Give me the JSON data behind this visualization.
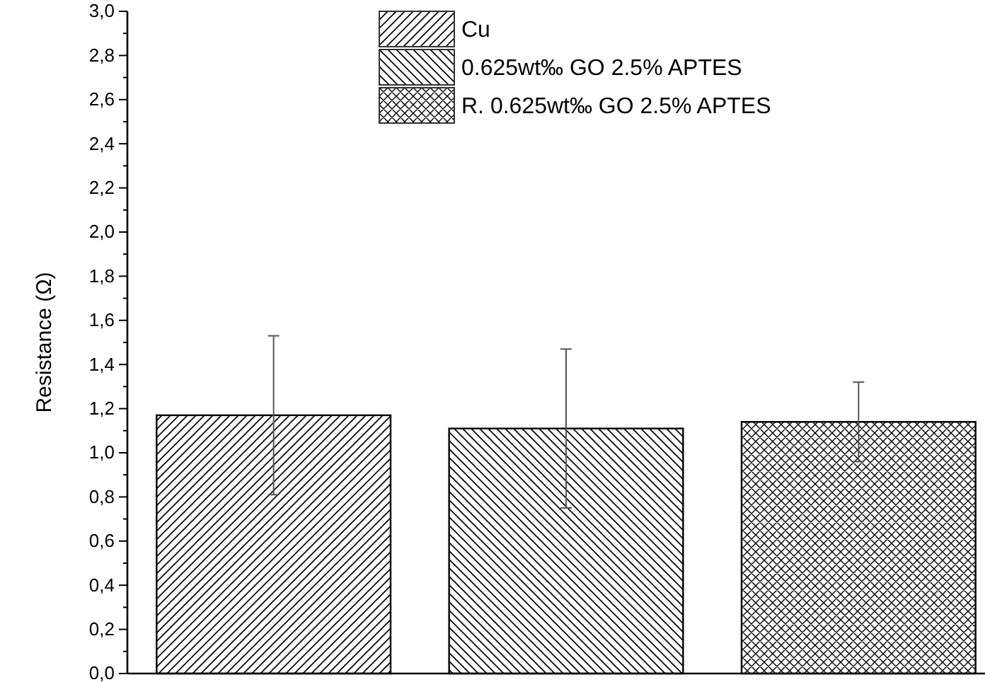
{
  "chart_data": {
    "type": "bar",
    "ylabel": "Resistance (Ω)",
    "categories": [
      null,
      null,
      null
    ],
    "series": [
      {
        "name": "Cu",
        "color": "#000000",
        "values": [
          1.17,
          null,
          null
        ],
        "errors": [
          0.36,
          null,
          null
        ]
      },
      {
        "name": "0.625wt‰ GO 2.5% APTES",
        "color": "#000000",
        "values": [
          null,
          1.11,
          null
        ],
        "errors": [
          null,
          0.36,
          null
        ]
      },
      {
        "name": "R. 0.625wt‰ GO 2.5% APTES",
        "color": "#000000",
        "values": [
          null,
          null,
          1.14
        ],
        "errors": [
          null,
          null,
          0.18
        ]
      }
    ],
    "ylim": [
      0,
      3
    ],
    "yticks": [
      {
        "value": 0,
        "label": "0,0"
      },
      {
        "value": 0.2,
        "label": "0,2"
      },
      {
        "value": 0.4,
        "label": "0,4"
      },
      {
        "value": 0.6,
        "label": "0,6"
      },
      {
        "value": 0.8,
        "label": "0,8"
      },
      {
        "value": 1,
        "label": "1,0"
      },
      {
        "value": 1.2,
        "label": "1,2"
      },
      {
        "value": 1.4,
        "label": "1,4"
      },
      {
        "value": 1.6,
        "label": "1,6"
      },
      {
        "value": 1.8,
        "label": "1,8"
      },
      {
        "value": 2,
        "label": "2,0"
      },
      {
        "value": 2.2,
        "label": "2,2"
      },
      {
        "value": 2.4,
        "label": "2,4"
      },
      {
        "value": 2.6,
        "label": "2,6"
      },
      {
        "value": 2.8,
        "label": "2,8"
      },
      {
        "value": 3,
        "label": "3,0"
      }
    ],
    "tick_labels": "y",
    "legend": "top",
    "grid": false
  }
}
